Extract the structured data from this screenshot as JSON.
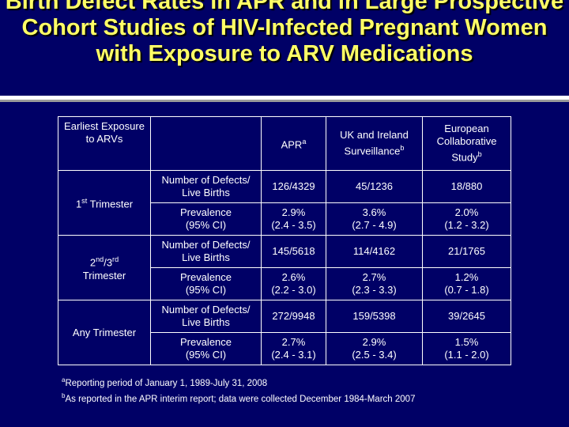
{
  "slide": {
    "title": "Birth Defect Rates in APR and in Large Prospective Cohort Studies of HIV-Infected Pregnant Women with Exposure to ARV Medications"
  },
  "table": {
    "header": {
      "exposure": "Earliest Exposure to ARVs",
      "apr": "APR",
      "apr_sup": "a",
      "uk_line1": "UK and Ireland",
      "uk_line2": "Surveillance",
      "uk_sup": "b",
      "eu_line1": "European Collaborative",
      "eu_line2": "Study",
      "eu_sup": "b"
    },
    "groups": [
      {
        "exposure_main": "1",
        "exposure_sup": "st",
        "exposure_rest": " Trimester",
        "rows": [
          {
            "metric": "Number of Defects/ Live Births",
            "apr": "126/4329",
            "uk": "45/1236",
            "eu": "18/880"
          },
          {
            "metric_line1": "Prevalence",
            "metric_line2": "(95% CI)",
            "apr1": "2.9%",
            "apr2": "(2.4 - 3.5)",
            "uk1": "3.6%",
            "uk2": "(2.7 - 4.9)",
            "eu1": "2.0%",
            "eu2": "(1.2 - 3.2)"
          }
        ]
      },
      {
        "exposure_a": "2",
        "exposure_a_sup": "nd",
        "exposure_b": "/3",
        "exposure_b_sup": "rd",
        "exposure_line2": "Trimester",
        "rows": [
          {
            "metric": "Number of Defects/ Live Births",
            "apr": "145/5618",
            "uk": "114/4162",
            "eu": "21/1765"
          },
          {
            "metric_line1": "Prevalence",
            "metric_line2": "(95% CI)",
            "apr1": "2.6%",
            "apr2": "(2.2 - 3.0)",
            "uk1": "2.7%",
            "uk2": "(2.3 - 3.3)",
            "eu1": "1.2%",
            "eu2": "(0.7 - 1.8)"
          }
        ]
      },
      {
        "exposure": "Any Trimester",
        "rows": [
          {
            "metric": "Number of Defects/ Live Births",
            "apr": "272/9948",
            "uk": "159/5398",
            "eu": "39/2645"
          },
          {
            "metric_line1": "Prevalence",
            "metric_line2": "(95% CI)",
            "apr1": "2.7%",
            "apr2": "(2.4 - 3.1)",
            "uk1": "2.9%",
            "uk2": "(2.5 - 3.4)",
            "eu1": "1.5%",
            "eu2": "(1.1 - 2.0)"
          }
        ]
      }
    ]
  },
  "footnotes": [
    {
      "marker": "a",
      "text": "Reporting period of January 1, 1989-July 31, 2008"
    },
    {
      "marker": "b",
      "text": "As reported in the APR interim report; data were collected December 1984-March 2007"
    }
  ],
  "colors": {
    "background": "#000066",
    "title": "#ffff66",
    "text": "#ffffff",
    "rule": "#ffffff"
  }
}
